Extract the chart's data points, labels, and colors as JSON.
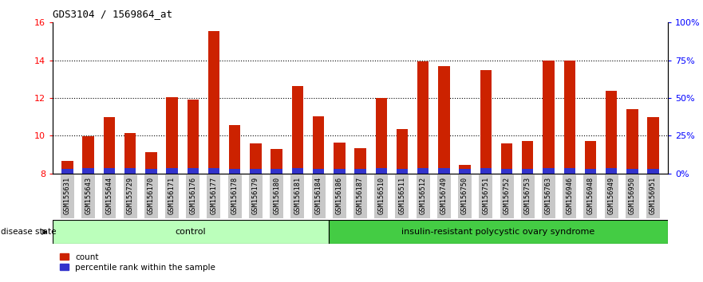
{
  "title": "GDS3104 / 1569864_at",
  "samples": [
    "GSM155631",
    "GSM155643",
    "GSM155644",
    "GSM155729",
    "GSM156170",
    "GSM156171",
    "GSM156176",
    "GSM156177",
    "GSM156178",
    "GSM156179",
    "GSM156180",
    "GSM156181",
    "GSM156184",
    "GSM156186",
    "GSM156187",
    "GSM156510",
    "GSM156511",
    "GSM156512",
    "GSM156749",
    "GSM156750",
    "GSM156751",
    "GSM156752",
    "GSM156753",
    "GSM156763",
    "GSM156946",
    "GSM156948",
    "GSM156949",
    "GSM156950",
    "GSM156951"
  ],
  "red_values": [
    8.65,
    9.97,
    11.0,
    10.15,
    9.12,
    12.05,
    11.93,
    15.55,
    10.55,
    9.6,
    9.3,
    12.65,
    11.05,
    9.65,
    9.35,
    12.0,
    10.35,
    13.95,
    13.7,
    8.45,
    13.5,
    9.6,
    9.7,
    14.0,
    14.0,
    9.7,
    12.4,
    11.4,
    11.0
  ],
  "blue_values": [
    0.25,
    0.28,
    0.28,
    0.28,
    0.25,
    0.28,
    0.28,
    0.3,
    0.25,
    0.25,
    0.25,
    0.28,
    0.25,
    0.25,
    0.25,
    0.28,
    0.25,
    0.28,
    0.28,
    0.25,
    0.28,
    0.25,
    0.25,
    0.28,
    0.28,
    0.25,
    0.28,
    0.25,
    0.25
  ],
  "control_count": 13,
  "ylim_left": [
    8,
    16
  ],
  "ylim_right": [
    0,
    100
  ],
  "yticks_left": [
    8,
    10,
    12,
    14,
    16
  ],
  "yticks_right": [
    0,
    25,
    50,
    75,
    100
  ],
  "ytick_labels_right": [
    "0%",
    "25%",
    "50%",
    "75%",
    "100%"
  ],
  "bar_width": 0.55,
  "red_color": "#CC2200",
  "blue_color": "#3333CC",
  "control_label": "control",
  "disease_label": "insulin-resistant polycystic ovary syndrome",
  "control_bg": "#BBFFBB",
  "disease_bg": "#44CC44",
  "label_bg": "#C8C8C8",
  "disease_state_label": "disease state",
  "legend_count": "count",
  "legend_percentile": "percentile rank within the sample",
  "base_value": 8.0
}
